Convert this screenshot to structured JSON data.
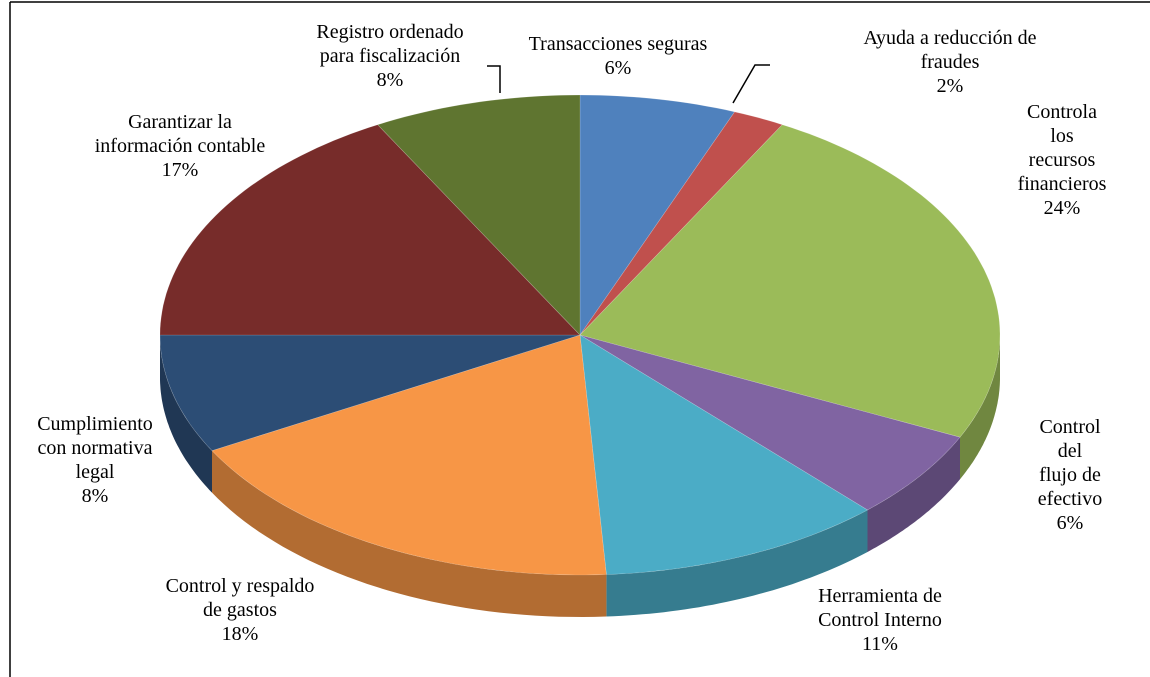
{
  "chart_data": {
    "type": "pie",
    "categories": [
      "Transacciones seguras",
      "Ayuda a reducción de fraudes",
      "Controla los\nrecursos financieros",
      "Control del\nflujo de efectivo",
      "Herramienta de\nControl Interno",
      "Control y respaldo\nde gastos",
      "Cumplimiento\ncon normativa\nlegal",
      "Garantizar la\ninformación contable",
      "Registro ordenado\npara fiscalización"
    ],
    "values": [
      6,
      2,
      24,
      6,
      11,
      18,
      8,
      17,
      8
    ],
    "value_labels": [
      "6%",
      "2%",
      "24%",
      "6%",
      "11%",
      "18%",
      "8%",
      "17%",
      "8%"
    ],
    "colors": [
      "#4f81bd",
      "#c0504d",
      "#9bbb59",
      "#8064a2",
      "#4bacc6",
      "#f79646",
      "#2c4d75",
      "#772c2a",
      "#5f7530"
    ]
  }
}
